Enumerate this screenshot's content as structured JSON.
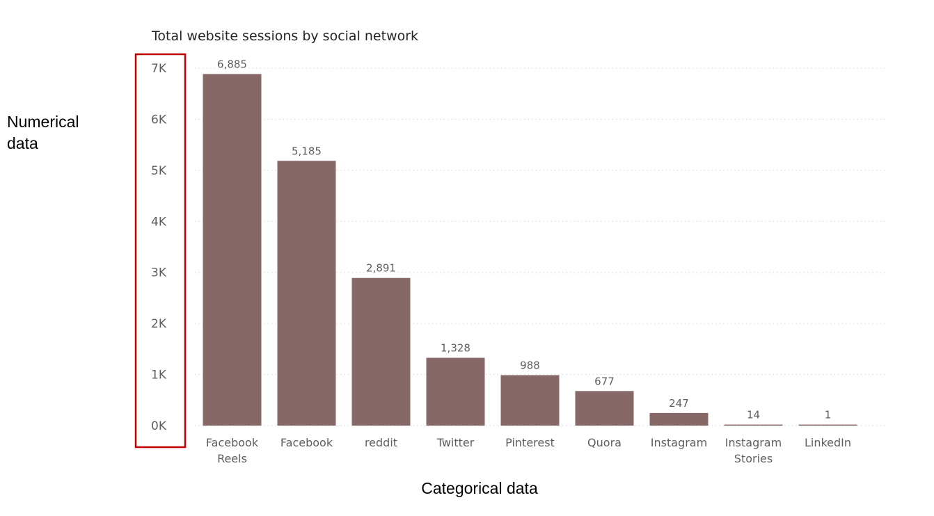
{
  "chart_data": {
    "type": "bar",
    "title": "Total website sessions by social network",
    "xlabel": "",
    "ylabel": "",
    "categories": [
      [
        "Facebook",
        "Reels"
      ],
      [
        "Facebook"
      ],
      [
        "reddit"
      ],
      [
        "Twitter"
      ],
      [
        "Pinterest"
      ],
      [
        "Quora"
      ],
      [
        "Instagram"
      ],
      [
        "Instagram",
        "Stories"
      ],
      [
        "LinkedIn"
      ]
    ],
    "values": [
      6885,
      5185,
      2891,
      1328,
      988,
      677,
      247,
      14,
      1
    ],
    "value_labels": [
      "6,885",
      "5,185",
      "2,891",
      "1,328",
      "988",
      "677",
      "247",
      "14",
      "1"
    ],
    "ylim": [
      0,
      7000
    ],
    "yticks": [
      0,
      1000,
      2000,
      3000,
      4000,
      5000,
      6000,
      7000
    ],
    "ytick_labels": [
      "0K",
      "1K",
      "2K",
      "3K",
      "4K",
      "5K",
      "6K",
      "7K"
    ],
    "grid": true,
    "bar_color": "#866866"
  },
  "annotations": {
    "y_axis_note": [
      "Numerical",
      "data"
    ],
    "x_axis_note": "Categorical data",
    "highlight_color": "#c00000"
  }
}
